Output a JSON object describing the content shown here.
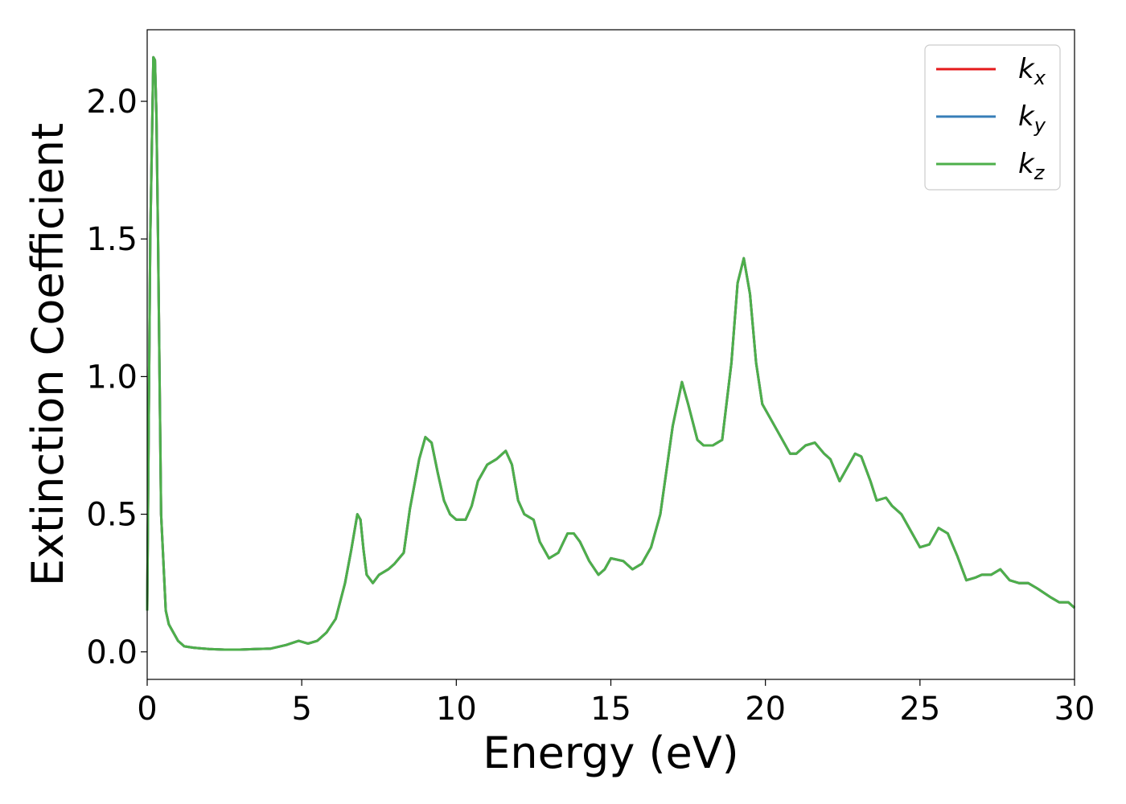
{
  "chart_data": {
    "type": "line",
    "xlabel": "Energy (eV)",
    "ylabel": "Extinction Coefficient",
    "xlim": [
      0,
      30
    ],
    "ylim": [
      -0.1,
      2.26
    ],
    "xticks": [
      "0",
      "5",
      "10",
      "15",
      "20",
      "25",
      "30"
    ],
    "yticks": [
      "0.0",
      "0.5",
      "1.0",
      "1.5",
      "2.0"
    ],
    "grid": false,
    "legend": {
      "placement": "top-right"
    },
    "series": [
      {
        "name": "k_x",
        "label_main": "k",
        "label_sub": "x",
        "color": "#e41a1c",
        "x": [
          0,
          0.1,
          0.2,
          0.25,
          0.3,
          0.35,
          0.45,
          0.6,
          0.7,
          0.8,
          1.0,
          1.2,
          1.5,
          2.0,
          2.5,
          3.0,
          3.5,
          4.0,
          4.5,
          4.9,
          5.2,
          5.5,
          5.8,
          6.1,
          6.4,
          6.6,
          6.8,
          6.9,
          7.0,
          7.1,
          7.3,
          7.5,
          7.8,
          8.0,
          8.3,
          8.5,
          8.8,
          9.0,
          9.2,
          9.4,
          9.6,
          9.8,
          10.0,
          10.3,
          10.5,
          10.7,
          11.0,
          11.3,
          11.6,
          11.8,
          12.0,
          12.2,
          12.5,
          12.7,
          13.0,
          13.3,
          13.6,
          13.8,
          14.0,
          14.3,
          14.6,
          14.8,
          15.0,
          15.4,
          15.7,
          16.0,
          16.3,
          16.6,
          17.0,
          17.3,
          17.5,
          17.8,
          18.0,
          18.3,
          18.6,
          18.9,
          19.1,
          19.3,
          19.5,
          19.7,
          19.9,
          20.2,
          20.5,
          20.8,
          21.0,
          21.3,
          21.6,
          21.9,
          22.1,
          22.4,
          22.6,
          22.9,
          23.1,
          23.4,
          23.6,
          23.9,
          24.1,
          24.4,
          24.7,
          25.0,
          25.3,
          25.6,
          25.9,
          26.2,
          26.5,
          26.8,
          27.0,
          27.3,
          27.6,
          27.9,
          28.2,
          28.5,
          28.8,
          29.2,
          29.5,
          29.8,
          30.0
        ],
        "y": [
          0.15,
          1.5,
          2.16,
          2.15,
          1.95,
          1.5,
          0.5,
          0.15,
          0.1,
          0.08,
          0.04,
          0.02,
          0.015,
          0.01,
          0.008,
          0.008,
          0.01,
          0.012,
          0.025,
          0.04,
          0.03,
          0.04,
          0.07,
          0.12,
          0.25,
          0.37,
          0.5,
          0.48,
          0.37,
          0.28,
          0.25,
          0.28,
          0.3,
          0.32,
          0.36,
          0.52,
          0.7,
          0.78,
          0.76,
          0.65,
          0.55,
          0.5,
          0.48,
          0.48,
          0.53,
          0.62,
          0.68,
          0.7,
          0.73,
          0.68,
          0.55,
          0.5,
          0.48,
          0.4,
          0.34,
          0.36,
          0.43,
          0.43,
          0.4,
          0.33,
          0.28,
          0.3,
          0.34,
          0.33,
          0.3,
          0.32,
          0.38,
          0.5,
          0.82,
          0.98,
          0.9,
          0.77,
          0.75,
          0.75,
          0.77,
          1.05,
          1.34,
          1.43,
          1.3,
          1.05,
          0.9,
          0.84,
          0.78,
          0.72,
          0.72,
          0.75,
          0.76,
          0.72,
          0.7,
          0.62,
          0.66,
          0.72,
          0.71,
          0.62,
          0.55,
          0.56,
          0.53,
          0.5,
          0.44,
          0.38,
          0.39,
          0.45,
          0.43,
          0.35,
          0.26,
          0.27,
          0.28,
          0.28,
          0.3,
          0.26,
          0.25,
          0.25,
          0.23,
          0.2,
          0.18,
          0.18,
          0.16
        ]
      },
      {
        "name": "k_y",
        "label_main": "k",
        "label_sub": "y",
        "color": "#377eb8",
        "x": [
          0,
          0.1,
          0.2,
          0.25,
          0.3,
          0.35,
          0.45,
          0.6,
          0.7,
          0.8,
          1.0,
          1.2,
          1.5,
          2.0,
          2.5,
          3.0,
          3.5,
          4.0,
          4.5,
          4.9,
          5.2,
          5.5,
          5.8,
          6.1,
          6.4,
          6.6,
          6.8,
          6.9,
          7.0,
          7.1,
          7.3,
          7.5,
          7.8,
          8.0,
          8.3,
          8.5,
          8.8,
          9.0,
          9.2,
          9.4,
          9.6,
          9.8,
          10.0,
          10.3,
          10.5,
          10.7,
          11.0,
          11.3,
          11.6,
          11.8,
          12.0,
          12.2,
          12.5,
          12.7,
          13.0,
          13.3,
          13.6,
          13.8,
          14.0,
          14.3,
          14.6,
          14.8,
          15.0,
          15.4,
          15.7,
          16.0,
          16.3,
          16.6,
          17.0,
          17.3,
          17.5,
          17.8,
          18.0,
          18.3,
          18.6,
          18.9,
          19.1,
          19.3,
          19.5,
          19.7,
          19.9,
          20.2,
          20.5,
          20.8,
          21.0,
          21.3,
          21.6,
          21.9,
          22.1,
          22.4,
          22.6,
          22.9,
          23.1,
          23.4,
          23.6,
          23.9,
          24.1,
          24.4,
          24.7,
          25.0,
          25.3,
          25.6,
          25.9,
          26.2,
          26.5,
          26.8,
          27.0,
          27.3,
          27.6,
          27.9,
          28.2,
          28.5,
          28.8,
          29.2,
          29.5,
          29.8,
          30.0
        ],
        "y": [
          0.15,
          1.5,
          2.16,
          2.15,
          1.95,
          1.5,
          0.5,
          0.15,
          0.1,
          0.08,
          0.04,
          0.02,
          0.015,
          0.01,
          0.008,
          0.008,
          0.01,
          0.012,
          0.025,
          0.04,
          0.03,
          0.04,
          0.07,
          0.12,
          0.25,
          0.37,
          0.5,
          0.48,
          0.37,
          0.28,
          0.25,
          0.28,
          0.3,
          0.32,
          0.36,
          0.52,
          0.7,
          0.78,
          0.76,
          0.65,
          0.55,
          0.5,
          0.48,
          0.48,
          0.53,
          0.62,
          0.68,
          0.7,
          0.73,
          0.68,
          0.55,
          0.5,
          0.48,
          0.4,
          0.34,
          0.36,
          0.43,
          0.43,
          0.4,
          0.33,
          0.28,
          0.3,
          0.34,
          0.33,
          0.3,
          0.32,
          0.38,
          0.5,
          0.82,
          0.98,
          0.9,
          0.77,
          0.75,
          0.75,
          0.77,
          1.05,
          1.34,
          1.43,
          1.3,
          1.05,
          0.9,
          0.84,
          0.78,
          0.72,
          0.72,
          0.75,
          0.76,
          0.72,
          0.7,
          0.62,
          0.66,
          0.72,
          0.71,
          0.62,
          0.55,
          0.56,
          0.53,
          0.5,
          0.44,
          0.38,
          0.39,
          0.45,
          0.43,
          0.35,
          0.26,
          0.27,
          0.28,
          0.28,
          0.3,
          0.26,
          0.25,
          0.25,
          0.23,
          0.2,
          0.18,
          0.18,
          0.16
        ]
      },
      {
        "name": "k_z",
        "label_main": "k",
        "label_sub": "z",
        "color": "#4daf4a",
        "x": [
          0,
          0.1,
          0.2,
          0.25,
          0.3,
          0.35,
          0.45,
          0.6,
          0.7,
          0.8,
          1.0,
          1.2,
          1.5,
          2.0,
          2.5,
          3.0,
          3.5,
          4.0,
          4.5,
          4.9,
          5.2,
          5.5,
          5.8,
          6.1,
          6.4,
          6.6,
          6.8,
          6.9,
          7.0,
          7.1,
          7.3,
          7.5,
          7.8,
          8.0,
          8.3,
          8.5,
          8.8,
          9.0,
          9.2,
          9.4,
          9.6,
          9.8,
          10.0,
          10.3,
          10.5,
          10.7,
          11.0,
          11.3,
          11.6,
          11.8,
          12.0,
          12.2,
          12.5,
          12.7,
          13.0,
          13.3,
          13.6,
          13.8,
          14.0,
          14.3,
          14.6,
          14.8,
          15.0,
          15.4,
          15.7,
          16.0,
          16.3,
          16.6,
          17.0,
          17.3,
          17.5,
          17.8,
          18.0,
          18.3,
          18.6,
          18.9,
          19.1,
          19.3,
          19.5,
          19.7,
          19.9,
          20.2,
          20.5,
          20.8,
          21.0,
          21.3,
          21.6,
          21.9,
          22.1,
          22.4,
          22.6,
          22.9,
          23.1,
          23.4,
          23.6,
          23.9,
          24.1,
          24.4,
          24.7,
          25.0,
          25.3,
          25.6,
          25.9,
          26.2,
          26.5,
          26.8,
          27.0,
          27.3,
          27.6,
          27.9,
          28.2,
          28.5,
          28.8,
          29.2,
          29.5,
          29.8,
          30.0
        ],
        "y": [
          0.15,
          1.5,
          2.16,
          2.15,
          1.95,
          1.5,
          0.5,
          0.15,
          0.1,
          0.08,
          0.04,
          0.02,
          0.015,
          0.01,
          0.008,
          0.008,
          0.01,
          0.012,
          0.025,
          0.04,
          0.03,
          0.04,
          0.07,
          0.12,
          0.25,
          0.37,
          0.5,
          0.48,
          0.37,
          0.28,
          0.25,
          0.28,
          0.3,
          0.32,
          0.36,
          0.52,
          0.7,
          0.78,
          0.76,
          0.65,
          0.55,
          0.5,
          0.48,
          0.48,
          0.53,
          0.62,
          0.68,
          0.7,
          0.73,
          0.68,
          0.55,
          0.5,
          0.48,
          0.4,
          0.34,
          0.36,
          0.43,
          0.43,
          0.4,
          0.33,
          0.28,
          0.3,
          0.34,
          0.33,
          0.3,
          0.32,
          0.38,
          0.5,
          0.82,
          0.98,
          0.9,
          0.77,
          0.75,
          0.75,
          0.77,
          1.05,
          1.34,
          1.43,
          1.3,
          1.05,
          0.9,
          0.84,
          0.78,
          0.72,
          0.72,
          0.75,
          0.76,
          0.72,
          0.7,
          0.62,
          0.66,
          0.72,
          0.71,
          0.62,
          0.55,
          0.56,
          0.53,
          0.5,
          0.44,
          0.38,
          0.39,
          0.45,
          0.43,
          0.35,
          0.26,
          0.27,
          0.28,
          0.28,
          0.3,
          0.26,
          0.25,
          0.25,
          0.23,
          0.2,
          0.18,
          0.18,
          0.16
        ]
      }
    ]
  }
}
